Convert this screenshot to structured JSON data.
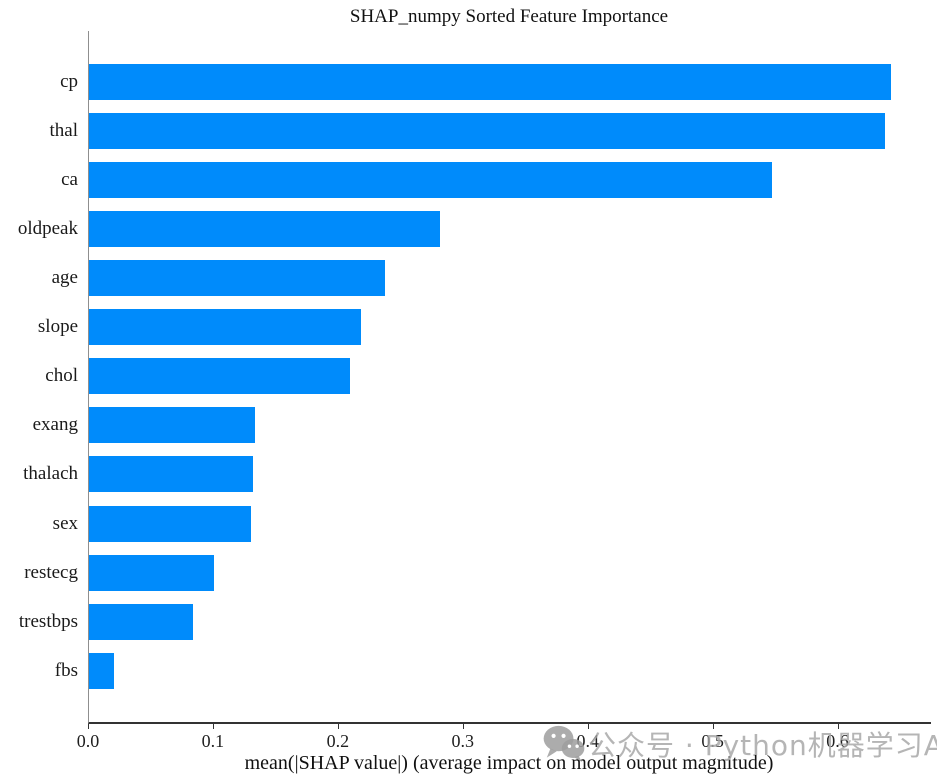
{
  "chart_data": {
    "type": "bar",
    "orientation": "horizontal",
    "title": "SHAP_numpy Sorted Feature Importance",
    "xlabel": "mean(|SHAP value|) (average impact on model output magnitude)",
    "ylabel": "",
    "categories": [
      "cp",
      "thal",
      "ca",
      "oldpeak",
      "age",
      "slope",
      "chol",
      "exang",
      "thalach",
      "sex",
      "restecg",
      "trestbps",
      "fbs"
    ],
    "values": [
      0.642,
      0.637,
      0.547,
      0.281,
      0.237,
      0.218,
      0.209,
      0.133,
      0.131,
      0.13,
      0.1,
      0.083,
      0.02
    ],
    "xlim": [
      0,
      0.674
    ],
    "xticks": [
      0.0,
      0.1,
      0.2,
      0.3,
      0.4,
      0.5,
      0.6
    ],
    "xtick_labels": [
      "0.0",
      "0.1",
      "0.2",
      "0.3",
      "0.4",
      "0.5",
      "0.6"
    ],
    "bar_color": "#008bfb",
    "axis_color": "#333333",
    "grid": false,
    "legend": null
  },
  "watermark": {
    "icon": "wechat-icon",
    "text": "公众号 · Python机器学习AI",
    "color": "#a5a5a5"
  }
}
